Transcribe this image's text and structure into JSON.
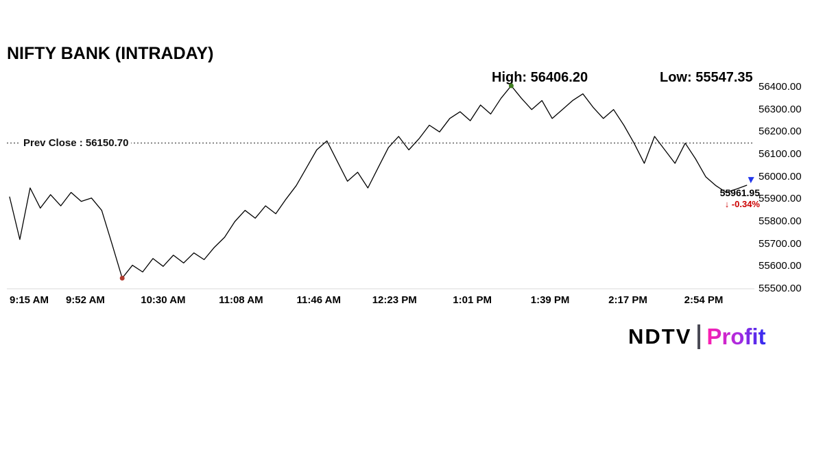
{
  "header": {
    "title": "NIFTY BANK (INTRADAY)"
  },
  "stats": {
    "high_label": "High: 56406.20",
    "low_label": "Low: 55547.35"
  },
  "prev_close": {
    "label": "Prev Close : 56150.70",
    "value": 56150.7
  },
  "last": {
    "price": "55961.95",
    "change": "↓ -0.34%",
    "change_color": "#cc0000"
  },
  "branding": {
    "ndtv": "NDTV",
    "separator_color": "#4a4a55",
    "profit": "Profit"
  },
  "chart_data": {
    "type": "line",
    "title": "NIFTY BANK (INTRADAY)",
    "line_color": "#000000",
    "prev_close": 56150.7,
    "high": 56406.2,
    "low": 55547.35,
    "last_value": 55961.95,
    "change_pct": -0.34,
    "ylim": [
      55500,
      56440
    ],
    "y_ticks": [
      {
        "label": "56400.00",
        "value": 56400
      },
      {
        "label": "56300.00",
        "value": 56300
      },
      {
        "label": "56200.00",
        "value": 56200
      },
      {
        "label": "56100.00",
        "value": 56100
      },
      {
        "label": "56000.00",
        "value": 56000
      },
      {
        "label": "55900.00",
        "value": 55900
      },
      {
        "label": "55800.00",
        "value": 55800
      },
      {
        "label": "55700.00",
        "value": 55700
      },
      {
        "label": "55600.00",
        "value": 55600
      },
      {
        "label": "55500.00",
        "value": 55500
      }
    ],
    "x_ticks": [
      {
        "label": "9:15 AM",
        "min": 0
      },
      {
        "label": "9:52 AM",
        "min": 37
      },
      {
        "label": "10:30 AM",
        "min": 75
      },
      {
        "label": "11:08 AM",
        "min": 113
      },
      {
        "label": "11:46 AM",
        "min": 151
      },
      {
        "label": "12:23 PM",
        "min": 188
      },
      {
        "label": "1:01 PM",
        "min": 226
      },
      {
        "label": "1:39 PM",
        "min": 264
      },
      {
        "label": "2:17 PM",
        "min": 302
      },
      {
        "label": "2:54 PM",
        "min": 339
      }
    ],
    "series": [
      {
        "name": "NIFTY BANK",
        "times": [
          "09:15",
          "09:20",
          "09:25",
          "09:30",
          "09:35",
          "09:40",
          "09:45",
          "09:50",
          "09:55",
          "10:00",
          "10:05",
          "10:10",
          "10:15",
          "10:20",
          "10:25",
          "10:30",
          "10:35",
          "10:40",
          "10:45",
          "10:50",
          "10:55",
          "11:00",
          "11:05",
          "11:10",
          "11:15",
          "11:20",
          "11:25",
          "11:30",
          "11:35",
          "11:40",
          "11:45",
          "11:50",
          "11:55",
          "12:00",
          "12:05",
          "12:10",
          "12:15",
          "12:20",
          "12:25",
          "12:30",
          "12:35",
          "12:40",
          "12:45",
          "12:50",
          "12:55",
          "13:00",
          "13:05",
          "13:10",
          "13:15",
          "13:20",
          "13:25",
          "13:30",
          "13:35",
          "13:40",
          "13:45",
          "13:50",
          "13:55",
          "14:00",
          "14:05",
          "14:10",
          "14:15",
          "14:20",
          "14:25",
          "14:30",
          "14:35",
          "14:40",
          "14:45",
          "14:50",
          "14:55",
          "15:00",
          "15:05",
          "15:10",
          "15:15"
        ],
        "values": [
          55910,
          55720,
          55950,
          55860,
          55920,
          55870,
          55930,
          55890,
          55905,
          55850,
          55700,
          55547.35,
          55605,
          55575,
          55635,
          55600,
          55650,
          55615,
          55660,
          55630,
          55685,
          55730,
          55800,
          55850,
          55815,
          55870,
          55835,
          55900,
          55960,
          56040,
          56120,
          56160,
          56070,
          55980,
          56020,
          55950,
          56040,
          56130,
          56180,
          56120,
          56170,
          56230,
          56200,
          56260,
          56290,
          56250,
          56320,
          56280,
          56350,
          56406.2,
          56350,
          56300,
          56340,
          56260,
          56300,
          56340,
          56370,
          56310,
          56260,
          56300,
          56230,
          56150,
          56060,
          56180,
          56120,
          56060,
          56150,
          56080,
          56000,
          55960,
          55930,
          55945,
          55961.95
        ]
      }
    ],
    "markers": {
      "high": {
        "time": "13:20",
        "value": 56406.2,
        "color": "#3f7d20"
      },
      "low": {
        "time": "10:10",
        "value": 55547.35,
        "color": "#b03a2e"
      },
      "last": {
        "time": "15:15",
        "value": 55961.95,
        "color": "#2337ec"
      }
    }
  }
}
